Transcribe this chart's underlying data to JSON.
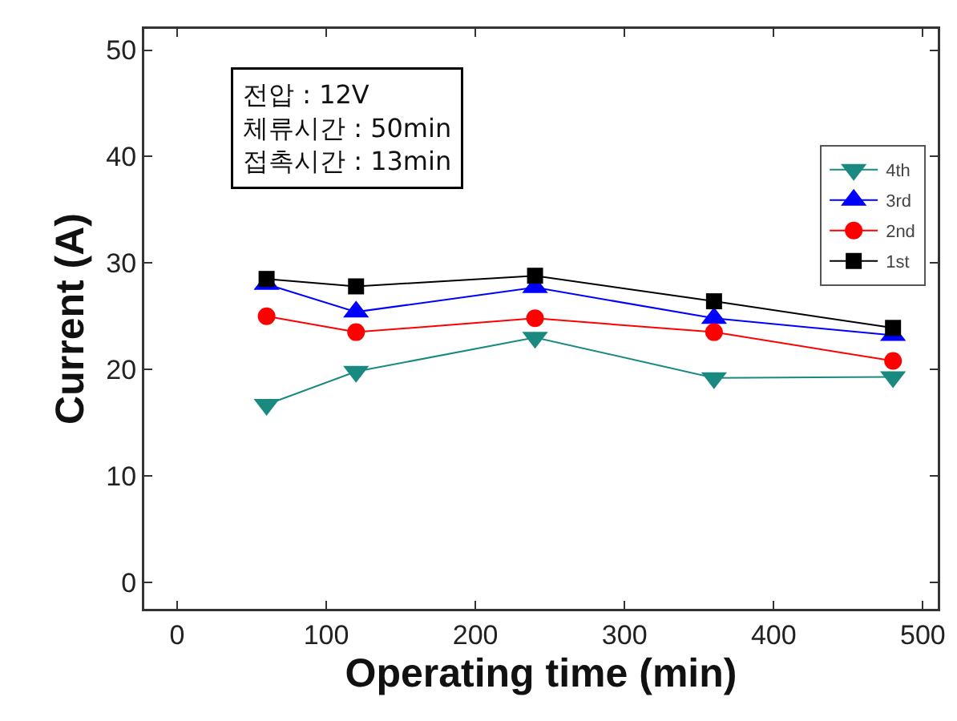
{
  "chart_data": {
    "type": "line",
    "xlabel": "Operating time (min)",
    "ylabel": "Current (A)",
    "x": [
      60,
      120,
      240,
      360,
      480
    ],
    "series": [
      {
        "name": "4th",
        "color": "#1a8a80",
        "marker": "triangle-down",
        "values": [
          16.7,
          19.8,
          23.0,
          19.2,
          19.3
        ]
      },
      {
        "name": "3rd",
        "color": "#0000ff",
        "marker": "triangle",
        "values": [
          28.0,
          25.4,
          27.7,
          24.8,
          23.2
        ]
      },
      {
        "name": "2nd",
        "color": "#ff0000",
        "marker": "circle",
        "values": [
          25.0,
          23.5,
          24.8,
          23.5,
          20.8
        ]
      },
      {
        "name": "1st",
        "color": "#000000",
        "marker": "square",
        "values": [
          28.5,
          27.8,
          28.8,
          26.4,
          23.9
        ]
      }
    ],
    "xlim": [
      -22,
      510
    ],
    "xticks": [
      0,
      100,
      200,
      300,
      400,
      500
    ],
    "ylim": [
      -2.5,
      52
    ],
    "yticks": [
      0,
      10,
      20,
      30,
      40,
      50
    ],
    "grid": false,
    "legend": "top right",
    "annotations": [
      "전압 : 12V\n체류시간 : 50min\n접촉시간 : 13min"
    ]
  }
}
